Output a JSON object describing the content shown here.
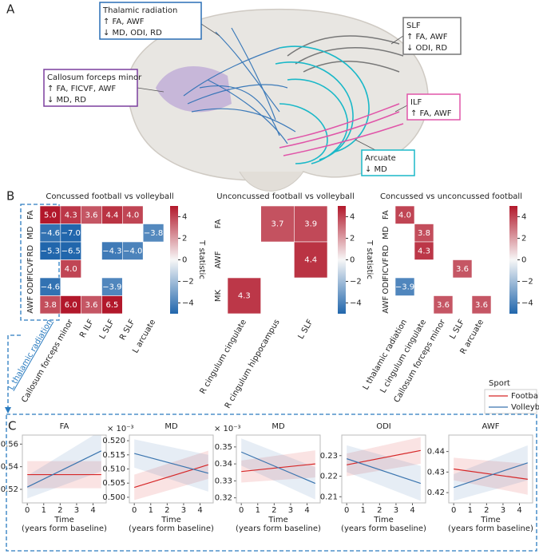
{
  "panel_a": {
    "label": "A",
    "annotations": [
      {
        "title": "Thalamic radiation",
        "lines": [
          "↑ FA, AWF",
          "↓ MD, ODI, RD"
        ]
      },
      {
        "title": "SLF",
        "lines": [
          "↑ FA, AWF",
          "↓ ODI, RD"
        ]
      },
      {
        "title": "Callosum forceps minor",
        "lines": [
          "↑ FA, FICVF, AWF",
          "↓ MD, RD"
        ]
      },
      {
        "title": "ILF",
        "lines": [
          "↑ FA, AWF"
        ]
      },
      {
        "title": "Arcuate",
        "lines": [
          "↓ MD"
        ]
      }
    ]
  },
  "panel_b": {
    "label": "B"
  },
  "panel_c": {
    "label": "C",
    "legend_title": "Sport"
  },
  "chart_data": [
    {
      "type": "heatmap",
      "title": "Concussed football vs volleyball",
      "x": [
        "L thalamic radiation",
        "Callosum forceps minor",
        "R ILF",
        "L SLF",
        "R SLF",
        "L arcuate"
      ],
      "y": [
        "FA",
        "MD",
        "RD",
        "FICVF",
        "ODI",
        "AWF"
      ],
      "values": [
        [
          5.0,
          4.3,
          3.6,
          4.4,
          4.0,
          null
        ],
        [
          -4.6,
          -7.0,
          null,
          null,
          null,
          -3.8
        ],
        [
          -5.3,
          -6.5,
          null,
          -4.3,
          -4.0,
          null
        ],
        [
          null,
          4.0,
          null,
          null,
          null,
          null
        ],
        [
          -4.6,
          null,
          null,
          -3.9,
          null,
          null
        ],
        [
          3.8,
          6.0,
          3.6,
          6.5,
          null,
          null
        ]
      ],
      "value_labels": [
        [
          "5.0",
          "4.3",
          "3.6",
          "4.4",
          "4.0",
          null
        ],
        [
          "−4.6",
          "−7.0",
          null,
          null,
          null,
          "−3.8"
        ],
        [
          "−5.3",
          "−6.5",
          null,
          "−4.3",
          "−4.0",
          null
        ],
        [
          null,
          "4.0",
          null,
          null,
          null,
          null
        ],
        [
          "−4.6",
          null,
          null,
          "−3.9",
          null,
          null
        ],
        [
          "3.8",
          "6.0",
          "3.6",
          "6.5",
          null,
          null
        ]
      ],
      "zlim": [
        -5,
        5
      ],
      "zticks": [
        {
          "value": -4,
          "label": "−4"
        },
        {
          "value": -2,
          "label": "−2"
        },
        0,
        2,
        4
      ],
      "colorbar_label": "T statistic",
      "colormap": [
        "#2166ac",
        "#f7f7f7",
        "#b2182b"
      ]
    },
    {
      "type": "heatmap",
      "title": "Unconcussed football vs volleyball",
      "x": [
        "R cingulum cingulate",
        "R cingulum hippocampus",
        "L SLF"
      ],
      "y": [
        "FA",
        "AWF",
        "MK"
      ],
      "values": [
        [
          null,
          3.7,
          3.9
        ],
        [
          null,
          null,
          4.4
        ],
        [
          4.3,
          null,
          null
        ]
      ],
      "value_labels": [
        [
          null,
          "3.7",
          "3.9"
        ],
        [
          null,
          null,
          "4.4"
        ],
        [
          "4.3",
          null,
          null
        ]
      ],
      "zlim": [
        -5,
        5
      ],
      "zticks": [
        {
          "value": -4,
          "label": "−4"
        },
        {
          "value": -2,
          "label": "−2"
        },
        0,
        2,
        4
      ],
      "colorbar_label": "T statistic",
      "colormap": [
        "#2166ac",
        "#f7f7f7",
        "#b2182b"
      ]
    },
    {
      "type": "heatmap",
      "title": "Concussed vs unconcussed football",
      "x": [
        "L thalamic radiation",
        "L cingulum cingulate",
        "Callosum forceps minor",
        "L SLF",
        "R arcuate"
      ],
      "y": [
        "FA",
        "MD",
        "RD",
        "FICVF",
        "ODI",
        "AWF"
      ],
      "values": [
        [
          4.0,
          null,
          null,
          null,
          null
        ],
        [
          null,
          3.8,
          null,
          null,
          null
        ],
        [
          null,
          4.3,
          null,
          null,
          null
        ],
        [
          null,
          null,
          null,
          3.6,
          null
        ],
        [
          -3.9,
          null,
          null,
          null,
          null
        ],
        [
          null,
          null,
          3.6,
          null,
          3.6
        ]
      ],
      "value_labels": [
        [
          "4.0",
          null,
          null,
          null,
          null
        ],
        [
          null,
          "3.8",
          null,
          null,
          null
        ],
        [
          null,
          "4.3",
          null,
          null,
          null
        ],
        [
          null,
          null,
          null,
          "3.6",
          null
        ],
        [
          "−3.9",
          null,
          null,
          null,
          null
        ],
        [
          null,
          null,
          "3.6",
          null,
          "3.6"
        ]
      ],
      "zlim": [
        -5,
        5
      ],
      "zticks": [
        {
          "value": -4,
          "label": "−4"
        },
        {
          "value": -2,
          "label": "−2"
        },
        0,
        2,
        4
      ],
      "colorbar_label": "T statistic",
      "colormap": [
        "#2166ac",
        "#f7f7f7",
        "#b2182b"
      ]
    },
    {
      "type": "line",
      "title": "FA",
      "xlabel": [
        "Time",
        "(years form baseline)"
      ],
      "x": [
        0,
        4.5
      ],
      "xlim": [
        -0.3,
        4.8
      ],
      "xticks": [
        0,
        1,
        2,
        3,
        4
      ],
      "ylim": [
        0.508,
        0.568
      ],
      "yticks": [
        0.52,
        0.54,
        0.56
      ],
      "series": [
        {
          "name": "Football",
          "color": "#d62728",
          "values": [
            0.533,
            0.533
          ],
          "ci_lower": [
            0.521,
            0.521
          ],
          "ci_upper": [
            0.545,
            0.545
          ]
        },
        {
          "name": "Volleyball",
          "color": "#3b75af",
          "values": [
            0.522,
            0.554
          ],
          "ci_lower": [
            0.512,
            0.536
          ],
          "ci_upper": [
            0.532,
            0.572
          ]
        }
      ]
    },
    {
      "type": "line",
      "title": "MD",
      "y_exponent_label": "× 10⁻³",
      "xlabel": [
        "Time",
        "(years form baseline)"
      ],
      "x": [
        0,
        4.5
      ],
      "xlim": [
        -0.3,
        4.8
      ],
      "xticks": [
        0,
        1,
        2,
        3,
        4
      ],
      "ylim": [
        0.498,
        0.522
      ],
      "yticks": [
        {
          "value": 0.5,
          "label": "0.500"
        },
        0.505,
        {
          "value": 0.51,
          "label": "0.510"
        },
        0.515,
        {
          "value": 0.52,
          "label": "0.520"
        }
      ],
      "series": [
        {
          "color": "#d62728",
          "values": [
            0.5035,
            0.5115
          ],
          "ci_lower": [
            0.499,
            0.5065
          ],
          "ci_upper": [
            0.508,
            0.5165
          ]
        },
        {
          "color": "#3b75af",
          "values": [
            0.5155,
            0.5085
          ],
          "ci_lower": [
            0.5105,
            0.502
          ],
          "ci_upper": [
            0.5205,
            0.515
          ]
        }
      ]
    },
    {
      "type": "line",
      "title": "MD",
      "y_exponent_label": "× 10⁻³",
      "xlabel": [
        "Time",
        "(years form baseline)"
      ],
      "x": [
        0,
        4.5
      ],
      "xlim": [
        -0.3,
        4.8
      ],
      "xticks": [
        0,
        1,
        2,
        3,
        4
      ],
      "ylim": [
        0.317,
        0.357
      ],
      "yticks": [
        0.32,
        0.33,
        0.34,
        0.35
      ],
      "series": [
        {
          "color": "#d62728",
          "values": [
            0.3355,
            0.34
          ],
          "ci_lower": [
            0.329,
            0.332
          ],
          "ci_upper": [
            0.342,
            0.348
          ]
        },
        {
          "color": "#3b75af",
          "values": [
            0.347,
            0.3285
          ],
          "ci_lower": [
            0.339,
            0.319
          ],
          "ci_upper": [
            0.355,
            0.338
          ]
        }
      ]
    },
    {
      "type": "line",
      "title": "ODI",
      "xlabel": [
        "Time",
        "(years form baseline)"
      ],
      "x": [
        0,
        4.5
      ],
      "xlim": [
        -0.3,
        4.8
      ],
      "xticks": [
        0,
        1,
        2,
        3,
        4
      ],
      "ylim": [
        0.207,
        0.24
      ],
      "yticks": [
        0.21,
        0.22,
        0.23
      ],
      "series": [
        {
          "color": "#d62728",
          "values": [
            0.2255,
            0.2325
          ],
          "ci_lower": [
            0.22,
            0.226
          ],
          "ci_upper": [
            0.231,
            0.239
          ]
        },
        {
          "color": "#3b75af",
          "values": [
            0.2285,
            0.2165
          ],
          "ci_lower": [
            0.222,
            0.208
          ],
          "ci_upper": [
            0.235,
            0.225
          ]
        }
      ]
    },
    {
      "type": "line",
      "title": "AWF",
      "xlabel": [
        "Time",
        "(years form baseline)"
      ],
      "x": [
        0,
        4.5
      ],
      "xlim": [
        -0.3,
        4.8
      ],
      "xticks": [
        0,
        1,
        2,
        3,
        4
      ],
      "ylim": [
        0.415,
        0.448
      ],
      "yticks": [
        0.42,
        0.43,
        0.44
      ],
      "series": [
        {
          "color": "#d62728",
          "values": [
            0.4315,
            0.4265
          ],
          "ci_lower": [
            0.426,
            0.419
          ],
          "ci_upper": [
            0.437,
            0.434
          ]
        },
        {
          "color": "#3b75af",
          "values": [
            0.4225,
            0.4345
          ],
          "ci_lower": [
            0.416,
            0.426
          ],
          "ci_upper": [
            0.429,
            0.443
          ]
        }
      ]
    }
  ]
}
